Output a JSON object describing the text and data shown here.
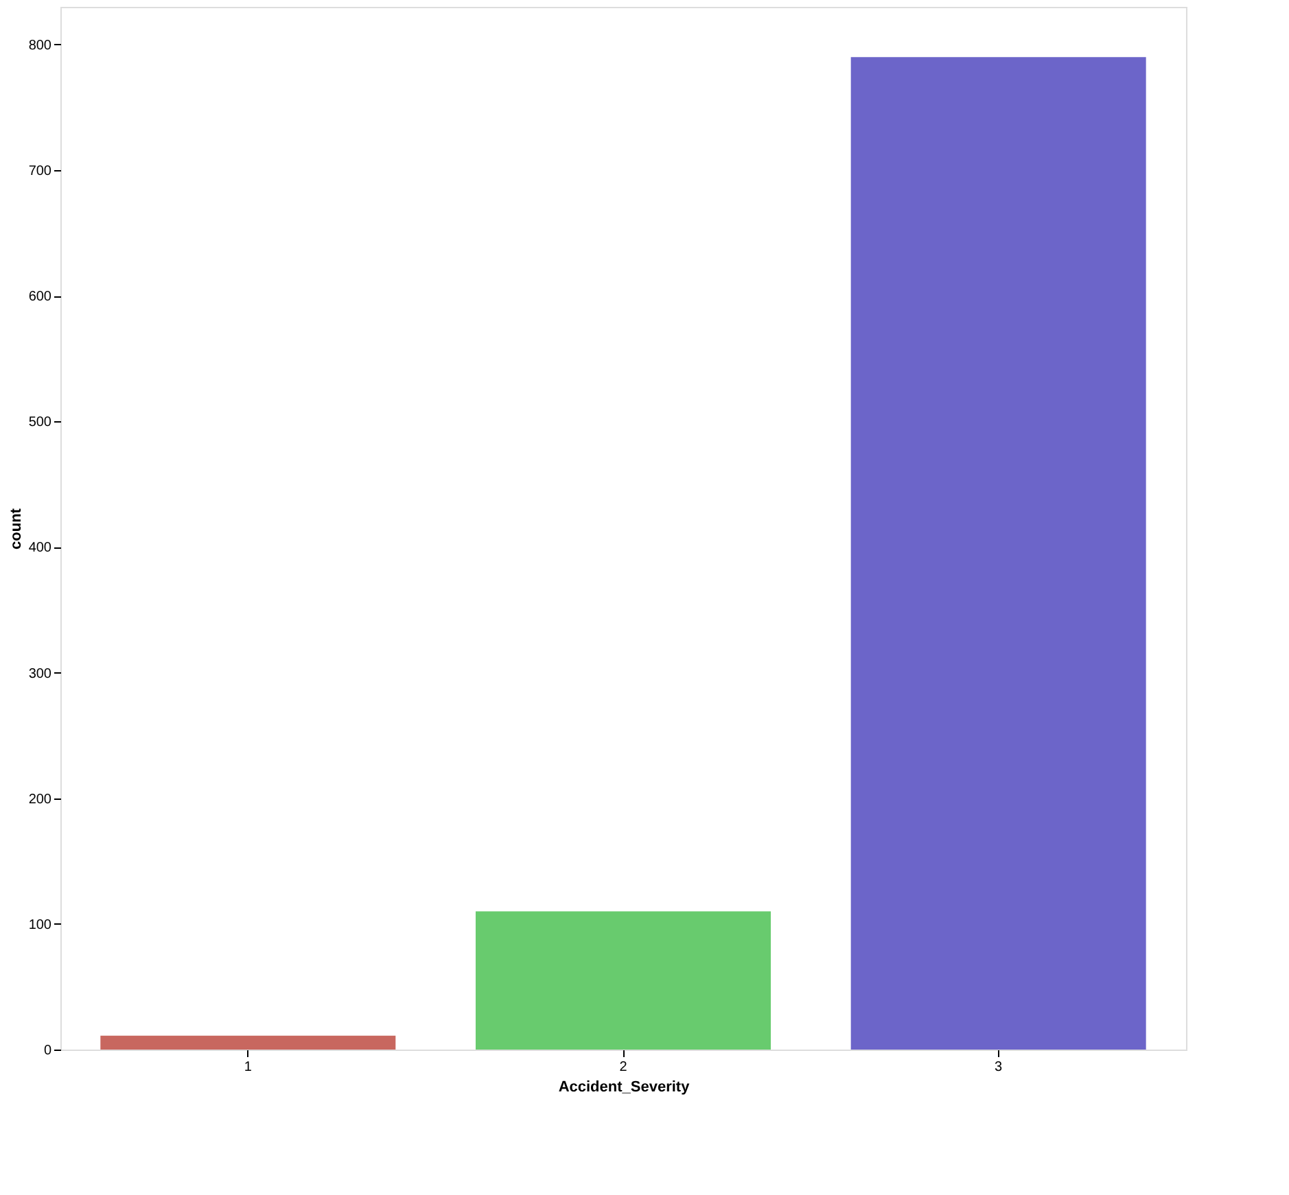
{
  "chart_data": {
    "type": "bar",
    "xlabel": "Accident_Severity",
    "ylabel": "count",
    "categories": [
      "1",
      "2",
      "3"
    ],
    "values": [
      11,
      110,
      790
    ],
    "colors": [
      "#c8675f",
      "#68cb6e",
      "#6c65c9"
    ],
    "ylim": [
      0,
      830
    ],
    "yticks": [
      0,
      100,
      200,
      300,
      400,
      500,
      600,
      700,
      800
    ],
    "grid": false
  }
}
